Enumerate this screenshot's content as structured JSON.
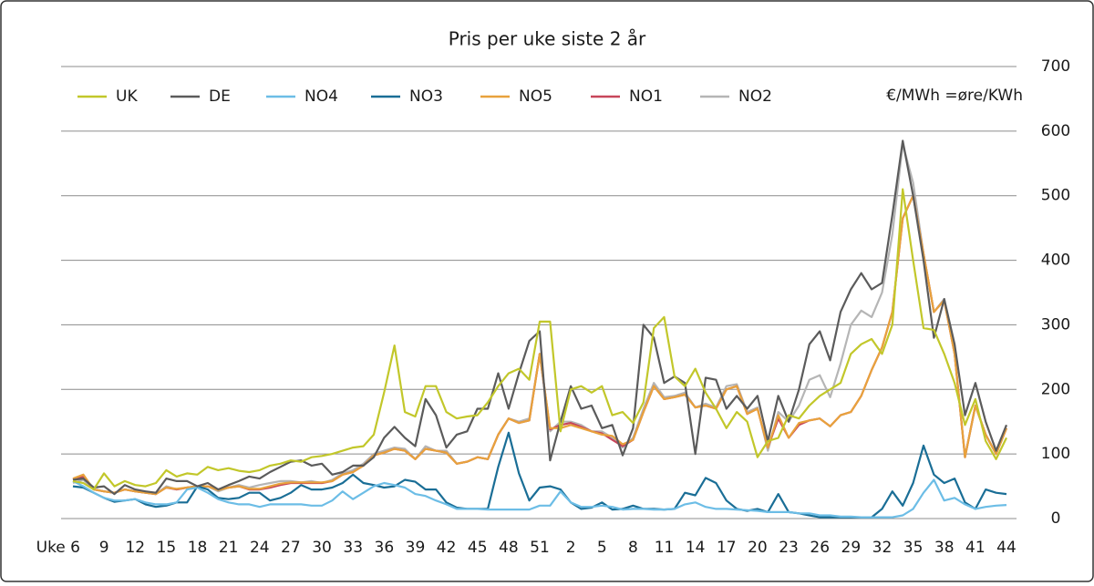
{
  "chart_data": {
    "type": "line",
    "title": "Pris per uke siste 2 år",
    "unit_label": "€/MWh =øre/KWh",
    "legend": "top",
    "grid": true,
    "categories": [
      "Uke 6",
      null,
      null,
      "9",
      null,
      null,
      "12",
      null,
      null,
      "15",
      null,
      null,
      "18",
      null,
      null,
      "21",
      null,
      null,
      "24",
      null,
      null,
      "27",
      null,
      null,
      "30",
      null,
      null,
      "33",
      null,
      null,
      "36",
      null,
      null,
      "39",
      null,
      null,
      "42",
      null,
      null,
      "45",
      null,
      null,
      "48",
      null,
      null,
      "51",
      null,
      null,
      "2",
      null,
      null,
      "5",
      null,
      null,
      "8",
      null,
      null,
      "11",
      null,
      null,
      "14",
      null,
      null,
      "17",
      null,
      null,
      "20",
      null,
      null,
      "23",
      null,
      null,
      "26",
      null,
      null,
      "29",
      null,
      null,
      "32",
      null,
      null,
      "35",
      null,
      null,
      "38",
      null,
      null,
      "41",
      null,
      null,
      "44"
    ],
    "ylim": [
      0,
      700
    ],
    "yticks": [
      0,
      100,
      200,
      300,
      400,
      500,
      600,
      700
    ],
    "series": [
      {
        "name": "UK",
        "color": "#c2c72a",
        "values": [
          58,
          55,
          45,
          70,
          50,
          58,
          52,
          50,
          55,
          75,
          65,
          70,
          68,
          80,
          75,
          78,
          74,
          72,
          75,
          82,
          85,
          90,
          88,
          95,
          97,
          100,
          105,
          110,
          112,
          130,
          195,
          268,
          165,
          158,
          205,
          205,
          165,
          155,
          158,
          160,
          180,
          205,
          225,
          232,
          215,
          305,
          305,
          135,
          200,
          205,
          195,
          205,
          160,
          165,
          148,
          180,
          295,
          312,
          220,
          205,
          232,
          195,
          170,
          140,
          165,
          150,
          95,
          120,
          125,
          160,
          155,
          175,
          190,
          200,
          210,
          255,
          270,
          278,
          255,
          300,
          510,
          400,
          295,
          292,
          255,
          210,
          145,
          185,
          120,
          92,
          125
        ]
      },
      {
        "name": "DE",
        "color": "#5b5b5b",
        "values": [
          60,
          62,
          48,
          50,
          38,
          52,
          45,
          42,
          40,
          62,
          58,
          58,
          50,
          55,
          45,
          52,
          58,
          65,
          62,
          72,
          80,
          88,
          90,
          82,
          85,
          68,
          72,
          82,
          82,
          95,
          125,
          142,
          125,
          112,
          185,
          160,
          110,
          130,
          135,
          170,
          170,
          225,
          170,
          225,
          275,
          290,
          90,
          150,
          205,
          170,
          175,
          140,
          145,
          98,
          140,
          300,
          280,
          210,
          220,
          210,
          100,
          218,
          215,
          170,
          190,
          170,
          190,
          120,
          190,
          150,
          200,
          270,
          290,
          245,
          320,
          355,
          380,
          355,
          365,
          470,
          585,
          500,
          400,
          280,
          340,
          270,
          160,
          210,
          150,
          105,
          145
        ]
      },
      {
        "name": "NO4",
        "color": "#6cbde6",
        "values": [
          58,
          50,
          40,
          32,
          28,
          28,
          30,
          25,
          22,
          22,
          25,
          45,
          48,
          40,
          30,
          25,
          22,
          22,
          18,
          22,
          22,
          22,
          22,
          20,
          20,
          28,
          42,
          30,
          40,
          50,
          55,
          52,
          48,
          38,
          35,
          28,
          22,
          15,
          15,
          15,
          14,
          14,
          14,
          14,
          14,
          20,
          20,
          42,
          25,
          18,
          18,
          20,
          18,
          14,
          15,
          15,
          14,
          14,
          15,
          22,
          25,
          18,
          15,
          15,
          14,
          13,
          12,
          10,
          10,
          10,
          8,
          8,
          5,
          5,
          3,
          3,
          2,
          2,
          2,
          2,
          5,
          15,
          40,
          60,
          28,
          32,
          22,
          15,
          18,
          20,
          21
        ]
      },
      {
        "name": "NO3",
        "color": "#1a6e96",
        "values": [
          50,
          48,
          40,
          32,
          26,
          28,
          30,
          22,
          18,
          20,
          25,
          25,
          50,
          45,
          32,
          30,
          32,
          40,
          40,
          28,
          32,
          40,
          52,
          45,
          45,
          48,
          55,
          68,
          55,
          52,
          48,
          50,
          60,
          57,
          45,
          45,
          25,
          17,
          15,
          15,
          15,
          80,
          133,
          70,
          28,
          48,
          50,
          45,
          25,
          15,
          17,
          25,
          14,
          15,
          20,
          15,
          15,
          14,
          15,
          40,
          36,
          63,
          55,
          28,
          15,
          12,
          15,
          10,
          38,
          10,
          8,
          5,
          2,
          2,
          2,
          2,
          2,
          2,
          15,
          42,
          20,
          55,
          113,
          68,
          55,
          62,
          25,
          15,
          45,
          40,
          38
        ]
      },
      {
        "name": "NO5",
        "color": "#e8a23c",
        "values": [
          62,
          68,
          45,
          42,
          40,
          45,
          42,
          40,
          38,
          48,
          46,
          48,
          50,
          50,
          44,
          48,
          50,
          46,
          46,
          50,
          54,
          56,
          56,
          56,
          56,
          58,
          68,
          72,
          82,
          98,
          102,
          108,
          105,
          92,
          108,
          105,
          102,
          85,
          88,
          95,
          92,
          130,
          155,
          148,
          152,
          255,
          140,
          140,
          145,
          140,
          135,
          130,
          128,
          115,
          122,
          165,
          205,
          185,
          188,
          192,
          172,
          175,
          170,
          200,
          205,
          162,
          170,
          110,
          160,
          125,
          148,
          152,
          155,
          143,
          160,
          165,
          190,
          230,
          265,
          320,
          465,
          500,
          410,
          320,
          338,
          255,
          95,
          175,
          130,
          100,
          140
        ]
      },
      {
        "name": "NO1",
        "color": "#c7465a",
        "values": [
          60,
          65,
          45,
          42,
          40,
          45,
          42,
          40,
          38,
          48,
          45,
          48,
          50,
          50,
          45,
          48,
          50,
          45,
          45,
          48,
          52,
          55,
          55,
          55,
          55,
          58,
          68,
          72,
          82,
          98,
          102,
          108,
          105,
          92,
          108,
          105,
          102,
          85,
          88,
          95,
          92,
          130,
          155,
          148,
          152,
          255,
          138,
          145,
          148,
          142,
          135,
          132,
          122,
          112,
          122,
          165,
          205,
          185,
          188,
          192,
          172,
          175,
          170,
          200,
          205,
          162,
          170,
          110,
          155,
          125,
          145,
          152,
          155,
          143,
          160,
          165,
          190,
          230,
          265,
          320,
          465,
          500,
          410,
          320,
          338,
          255,
          95,
          175,
          130,
          100,
          140
        ]
      },
      {
        "name": "NO2",
        "color": "#b5b5b5",
        "values": [
          55,
          60,
          45,
          42,
          40,
          45,
          42,
          40,
          38,
          50,
          45,
          48,
          50,
          50,
          42,
          48,
          52,
          48,
          52,
          55,
          58,
          58,
          56,
          58,
          55,
          60,
          70,
          75,
          85,
          100,
          105,
          110,
          108,
          92,
          112,
          105,
          105,
          85,
          88,
          95,
          92,
          130,
          155,
          150,
          155,
          255,
          135,
          150,
          150,
          145,
          135,
          135,
          125,
          110,
          125,
          170,
          210,
          188,
          190,
          195,
          172,
          178,
          172,
          205,
          208,
          165,
          172,
          105,
          165,
          150,
          175,
          215,
          222,
          188,
          240,
          300,
          322,
          312,
          350,
          440,
          580,
          520,
          410,
          320,
          340,
          255,
          95,
          175,
          130,
          100,
          140
        ]
      }
    ]
  }
}
